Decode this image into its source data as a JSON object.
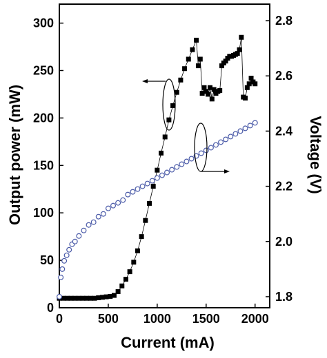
{
  "chart_data": {
    "type": "scatter",
    "xlabel": "Current (mA)",
    "ylabel_left": "Output power (mW)",
    "ylabel_right": "Voltage (V)",
    "xlim": [
      0,
      2150
    ],
    "ylim_left": [
      0,
      320
    ],
    "ylim_right": [
      1.76,
      2.86
    ],
    "x_ticks": [
      0,
      500,
      1000,
      1500,
      2000
    ],
    "x_tick_labels": [
      "0",
      "500",
      "1000",
      "1500",
      "2000"
    ],
    "y_left_ticks": [
      0,
      50,
      100,
      150,
      200,
      250,
      300
    ],
    "y_left_tick_labels": [
      "0",
      "50",
      "100",
      "150",
      "200",
      "250",
      "300"
    ],
    "y_right_ticks": [
      1.8,
      2.0,
      2.2,
      2.4,
      2.6,
      2.8
    ],
    "y_right_tick_labels": [
      "1.8",
      "2.0",
      "2.2",
      "2.4",
      "2.6",
      "2.8"
    ],
    "grid": false,
    "series": [
      {
        "marker": "filled-square",
        "axis": "left",
        "color": "#000000",
        "x": [
          0,
          40,
          80,
          120,
          160,
          200,
          240,
          280,
          320,
          360,
          400,
          440,
          480,
          520,
          560,
          600,
          640,
          680,
          720,
          760,
          800,
          840,
          880,
          920,
          960,
          1000,
          1040,
          1080,
          1120,
          1160,
          1200,
          1240,
          1280,
          1320,
          1360,
          1400,
          1420,
          1440,
          1460,
          1480,
          1500,
          1520,
          1540,
          1560,
          1580,
          1600,
          1620,
          1640,
          1660,
          1680,
          1700,
          1720,
          1740,
          1760,
          1780,
          1800,
          1820,
          1840,
          1860,
          1880,
          1900,
          1920,
          1940,
          1960,
          1980,
          2000
        ],
        "y": [
          10,
          10,
          10,
          10,
          10,
          10,
          10,
          10,
          10,
          10,
          10.5,
          11,
          11.5,
          12,
          13,
          17,
          23,
          30,
          38,
          48,
          60,
          75,
          92,
          110,
          128,
          145,
          163,
          180,
          198,
          213,
          227,
          240,
          252,
          262,
          272,
          282,
          255,
          262,
          226,
          232,
          228,
          225,
          232,
          220,
          230,
          226,
          228,
          229,
          255,
          258,
          260,
          263,
          265,
          265,
          266,
          267,
          268,
          272,
          285,
          222,
          221,
          232,
          236,
          242,
          238,
          236
        ]
      },
      {
        "marker": "open-circle",
        "axis": "right",
        "color": "#4a5aa8",
        "x": [
          0,
          15,
          30,
          50,
          75,
          100,
          130,
          160,
          200,
          250,
          300,
          350,
          400,
          450,
          500,
          550,
          600,
          650,
          700,
          750,
          800,
          850,
          900,
          950,
          1000,
          1050,
          1100,
          1150,
          1200,
          1250,
          1300,
          1350,
          1400,
          1450,
          1500,
          1550,
          1600,
          1650,
          1700,
          1750,
          1800,
          1850,
          1900,
          1950,
          2000
        ],
        "y": [
          1.8,
          1.87,
          1.9,
          1.93,
          1.95,
          1.97,
          1.99,
          2.0,
          2.02,
          2.04,
          2.06,
          2.07,
          2.09,
          2.1,
          2.12,
          2.13,
          2.14,
          2.15,
          2.17,
          2.18,
          2.19,
          2.2,
          2.21,
          2.22,
          2.23,
          2.24,
          2.25,
          2.26,
          2.27,
          2.28,
          2.29,
          2.3,
          2.31,
          2.32,
          2.33,
          2.34,
          2.35,
          2.36,
          2.37,
          2.38,
          2.39,
          2.4,
          2.41,
          2.42,
          2.43
        ]
      }
    ]
  }
}
